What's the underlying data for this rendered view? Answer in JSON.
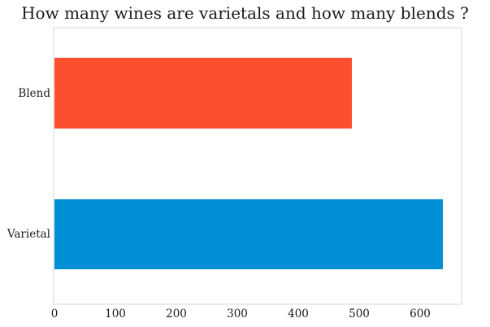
{
  "chart_data": {
    "type": "bar",
    "orientation": "horizontal",
    "title": "How many wines are varietals and how many blends ?",
    "categories": [
      "Blend",
      "Varietal"
    ],
    "values": [
      488,
      637
    ],
    "bar_colors": [
      "#FC4F30",
      "#008FD5"
    ],
    "xlabel": "",
    "ylabel": "",
    "xticks": [
      0,
      100,
      200,
      300,
      400,
      500,
      600
    ],
    "xlim": [
      0,
      668
    ],
    "grid": false,
    "legend": "none",
    "background_color": "#ffffff",
    "spine_color": "#ebebeb",
    "text_color": "#1a1a1a"
  }
}
